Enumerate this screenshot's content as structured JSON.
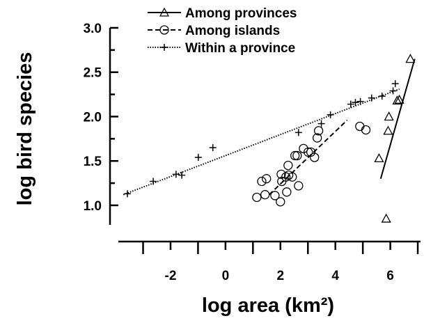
{
  "chart_data": {
    "type": "scatter",
    "x_label": "log area (km²)",
    "y_label": "log bird species",
    "xlim": [
      -3.9,
      7.1
    ],
    "ylim": [
      0.78,
      3.0
    ],
    "xticks": [
      -2,
      0,
      2,
      4,
      6
    ],
    "xminor": [
      -3,
      -1,
      1,
      3,
      5,
      7
    ],
    "yticks": [
      {
        "value": 1,
        "label": "1.0"
      },
      1.5,
      {
        "value": 2,
        "label": "2.0"
      },
      2.5,
      {
        "value": 3,
        "label": "3.0"
      }
    ],
    "yminor": [
      1.25,
      1.75,
      2.25,
      2.75
    ],
    "series": [
      {
        "name": "Among provinces",
        "color": "#000000",
        "marker": "triangle",
        "dash": "solid",
        "x": [
          5.59,
          5.92,
          5.95,
          6.25,
          6.33,
          6.73,
          5.85
        ],
        "values": [
          1.53,
          1.84,
          2.0,
          2.18,
          2.19,
          2.65,
          0.85
        ],
        "fit_x": [
          5.65,
          6.89
        ],
        "fit_y": [
          1.3,
          2.65
        ]
      },
      {
        "name": "Among islands",
        "color": "#000000",
        "marker": "circle",
        "dash": "dashed",
        "x": [
          1.14,
          1.44,
          1.32,
          1.49,
          1.8,
          2.0,
          2.05,
          2.03,
          2.2,
          2.23,
          2.28,
          2.3,
          2.43,
          2.53,
          2.61,
          2.66,
          2.84,
          3.01,
          3.11,
          3.24,
          3.34,
          3.39,
          4.89,
          5.11
        ],
        "values": [
          1.09,
          1.12,
          1.27,
          1.3,
          1.11,
          1.04,
          1.27,
          1.35,
          1.32,
          1.15,
          1.45,
          1.34,
          1.32,
          1.56,
          1.56,
          1.22,
          1.64,
          1.6,
          1.6,
          1.54,
          1.76,
          1.84,
          1.89,
          1.85
        ],
        "fit_x": [
          1.59,
          4.43
        ],
        "fit_y": [
          1.12,
          1.96
        ]
      },
      {
        "name": "Within a province",
        "color": "#000000",
        "marker": "plus",
        "dash": "dotted",
        "x": [
          -3.57,
          -2.63,
          -1.8,
          -1.59,
          -0.99,
          -0.46,
          2.66,
          3.49,
          3.82,
          4.56,
          4.73,
          4.91,
          5.32,
          5.7,
          6.1,
          6.18
        ],
        "values": [
          1.13,
          1.27,
          1.35,
          1.34,
          1.54,
          1.65,
          1.82,
          1.92,
          2.02,
          2.14,
          2.16,
          2.17,
          2.21,
          2.23,
          2.29,
          2.37
        ],
        "fit_x": [
          -3.72,
          6.33
        ],
        "fit_y": [
          1.12,
          2.31
        ]
      }
    ]
  }
}
